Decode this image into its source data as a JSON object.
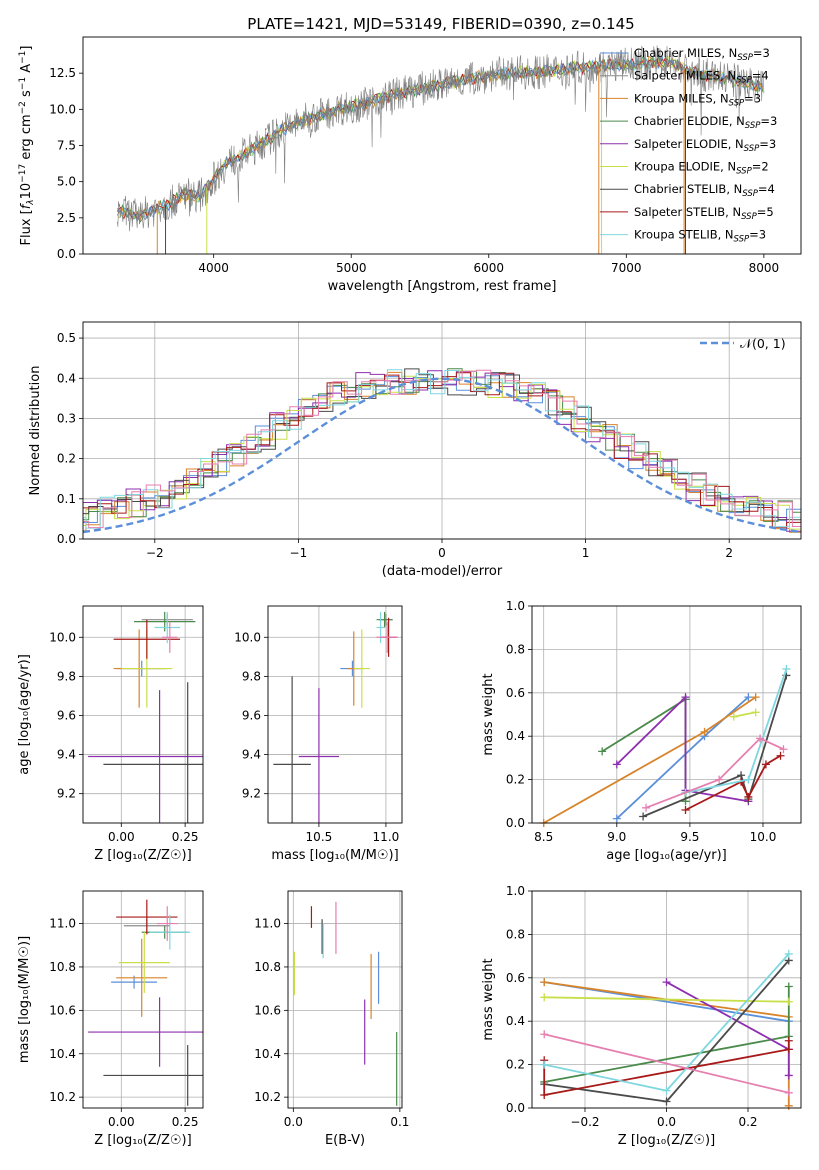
{
  "figure_title": "PLATE=1421, MJD=53149, FIBERID=0390, z=0.145",
  "colors": {
    "Chabrier MILES": "#5b8fd9",
    "Salpeter MILES": "#8c8c8c",
    "Kroupa MILES": "#d8842a",
    "Chabrier ELODIE": "#4a8a4a",
    "Salpeter ELODIE": "#8e2fae",
    "Kroupa ELODIE": "#c9df4a",
    "Chabrier STELIB": "#4a4a4a",
    "Salpeter STELIB": "#a81919",
    "Kroupa STELIB": "#7fd7e0",
    "pink": "#e67fb0",
    "normal": "#5b8fd9"
  },
  "chart_data": [
    {
      "id": "spectrum",
      "type": "line",
      "xlabel": "wavelength [Angstrom, rest frame]",
      "ylabel": "Flux [f_λ 10^-17 erg cm^-2 s^-1 A^-1]",
      "xlim": [
        3050,
        8270
      ],
      "ylim": [
        0,
        15
      ],
      "xticks": [
        "4000",
        "5000",
        "6000",
        "7000",
        "8000"
      ],
      "yticks": [
        "0.0",
        "2.5",
        "5.0",
        "7.5",
        "10.0",
        "12.5"
      ],
      "legend_position": "top-right",
      "legend": [
        {
          "label": "Chabrier MILES, N",
          "sub": "SSP",
          "tail": "=3"
        },
        {
          "label": "Salpeter MILES, N",
          "sub": "SSP",
          "tail": "=4"
        },
        {
          "label": "Kroupa MILES, N",
          "sub": "SSP",
          "tail": "=3"
        },
        {
          "label": "Chabrier ELODIE, N",
          "sub": "SSP",
          "tail": "=3"
        },
        {
          "label": "Salpeter ELODIE, N",
          "sub": "SSP",
          "tail": "=3"
        },
        {
          "label": "Kroupa ELODIE, N",
          "sub": "SSP",
          "tail": "=2"
        },
        {
          "label": "Chabrier STELIB, N",
          "sub": "SSP",
          "tail": "=4"
        },
        {
          "label": "Salpeter STELIB, N",
          "sub": "SSP",
          "tail": "=5"
        },
        {
          "label": "Kroupa STELIB, N",
          "sub": "SSP",
          "tail": "=3"
        }
      ],
      "continuum": [
        [
          3300,
          3.0
        ],
        [
          3450,
          2.6
        ],
        [
          3600,
          3.2
        ],
        [
          3700,
          3.6
        ],
        [
          3800,
          4.2
        ],
        [
          3900,
          4.0
        ],
        [
          4000,
          5.2
        ],
        [
          4100,
          6.3
        ],
        [
          4300,
          7.3
        ],
        [
          4500,
          8.6
        ],
        [
          4700,
          9.4
        ],
        [
          4900,
          10.0
        ],
        [
          5100,
          10.4
        ],
        [
          5300,
          11.0
        ],
        [
          5500,
          11.4
        ],
        [
          5800,
          12.0
        ],
        [
          6100,
          12.5
        ],
        [
          6400,
          12.6
        ],
        [
          6700,
          12.9
        ],
        [
          7000,
          13.1
        ],
        [
          7300,
          13.3
        ],
        [
          7500,
          12.5
        ],
        [
          7800,
          12.0
        ],
        [
          8000,
          11.5
        ]
      ]
    },
    {
      "id": "residuals",
      "type": "bar",
      "xlabel": "(data-model)/error",
      "ylabel": "Normed distribution",
      "xlim": [
        -2.5,
        2.5
      ],
      "ylim": [
        0,
        0.54
      ],
      "xticks": [
        "−2",
        "−1",
        "0",
        "1",
        "2"
      ],
      "yticks": [
        "0.0",
        "0.1",
        "0.2",
        "0.3",
        "0.4",
        "0.5"
      ],
      "legend": "𝒩(0, 1)",
      "bin_width": 0.1,
      "profile": [
        0.03,
        0.035,
        0.04,
        0.045,
        0.05,
        0.06,
        0.07,
        0.08,
        0.09,
        0.1,
        0.11,
        0.13,
        0.15,
        0.17,
        0.19,
        0.21,
        0.23,
        0.25,
        0.28,
        0.3,
        0.33,
        0.35,
        0.36,
        0.37,
        0.38,
        0.385,
        0.39,
        0.39,
        0.39,
        0.39,
        0.39,
        0.39,
        0.39,
        0.385,
        0.38,
        0.37,
        0.36,
        0.34,
        0.32,
        0.3,
        0.27,
        0.25,
        0.23,
        0.21,
        0.19,
        0.17,
        0.15,
        0.13,
        0.11,
        0.1,
        0.09,
        0.08,
        0.07,
        0.06,
        0.05,
        0.045,
        0.04,
        0.035,
        0.03,
        0.03
      ],
      "gaussian": "N(0,1) probability density"
    },
    {
      "id": "age_vs_Z",
      "type": "scatter",
      "xlabel": "Z [log₁₀(Z/Z☉)]",
      "ylabel": "age  [log₁₀(age/yr)]",
      "xlim": [
        -0.15,
        0.32
      ],
      "ylim": [
        9.05,
        10.16
      ],
      "xticks": [
        "0.00",
        "0.25"
      ],
      "yticks": [
        "9.2",
        "9.4",
        "9.6",
        "9.8",
        "10.0"
      ],
      "points": [
        {
          "c": "Chabrier MILES",
          "x": 0.08,
          "y": 9.84,
          "ex": 0.1,
          "ey": 0.04
        },
        {
          "c": "Salpeter MILES",
          "x": 0.18,
          "y": 10.09,
          "ex": 0.1,
          "ey": 0.03
        },
        {
          "c": "Kroupa MILES",
          "x": 0.07,
          "y": 9.84,
          "ex": 0.1,
          "ey": 0.2
        },
        {
          "c": "Chabrier ELODIE",
          "x": 0.17,
          "y": 10.08,
          "ex": 0.12,
          "ey": 0.05
        },
        {
          "c": "Salpeter ELODIE",
          "x": 0.15,
          "y": 9.39,
          "ex": 0.28,
          "ey": 0.34
        },
        {
          "c": "Kroupa ELODIE",
          "x": 0.1,
          "y": 9.84,
          "ex": 0.1,
          "ey": 0.2
        },
        {
          "c": "Chabrier STELIB",
          "x": 0.26,
          "y": 9.35,
          "ex": 0.33,
          "ey": 0.42
        },
        {
          "c": "Salpeter STELIB",
          "x": 0.1,
          "y": 9.99,
          "ex": 0.13,
          "ey": 0.1
        },
        {
          "c": "Kroupa STELIB",
          "x": 0.18,
          "y": 10.05,
          "ex": 0.05,
          "ey": 0.08
        },
        {
          "c": "pink",
          "x": 0.19,
          "y": 10.0,
          "ex": 0.03,
          "ey": 0.08
        }
      ]
    },
    {
      "id": "age_vs_mass",
      "type": "scatter",
      "xlabel": "mass [log₁₀(M/M☉)]",
      "ylabel": "",
      "xlim": [
        10.12,
        11.12
      ],
      "ylim": [
        9.05,
        10.16
      ],
      "xticks": [
        "10.5",
        "11.0"
      ],
      "yticks": [
        "9.2",
        "9.4",
        "9.6",
        "9.8",
        "10.0"
      ],
      "points": [
        {
          "c": "Chabrier MILES",
          "x": 10.75,
          "y": 9.84,
          "ex": 0.09,
          "ey": 0.04
        },
        {
          "c": "Salpeter MILES",
          "x": 11.0,
          "y": 10.09,
          "ex": 0.05,
          "ey": 0.03
        },
        {
          "c": "Kroupa MILES",
          "x": 10.76,
          "y": 9.84,
          "ex": 0.05,
          "ey": 0.19
        },
        {
          "c": "Chabrier ELODIE",
          "x": 10.99,
          "y": 10.09,
          "ex": 0.06,
          "ey": 0.04
        },
        {
          "c": "Salpeter ELODIE",
          "x": 10.5,
          "y": 9.39,
          "ex": 0.15,
          "ey": 0.35
        },
        {
          "c": "Kroupa ELODIE",
          "x": 10.82,
          "y": 9.84,
          "ex": 0.06,
          "ey": 0.2
        },
        {
          "c": "Chabrier STELIB",
          "x": 10.3,
          "y": 9.35,
          "ex": 0.14,
          "ey": 0.45
        },
        {
          "c": "Salpeter STELIB",
          "x": 11.02,
          "y": 10.0,
          "ex": 0.06,
          "ey": 0.1
        },
        {
          "c": "Kroupa STELIB",
          "x": 10.96,
          "y": 10.05,
          "ex": 0.03,
          "ey": 0.08
        },
        {
          "c": "pink",
          "x": 11.01,
          "y": 10.0,
          "ex": 0.08,
          "ey": 0.08
        }
      ]
    },
    {
      "id": "weight_vs_age",
      "type": "line",
      "xlabel": "age  [log₁₀(age/yr)]",
      "ylabel": "mass weight",
      "xlim": [
        8.42,
        10.26
      ],
      "ylim": [
        0,
        1.0
      ],
      "xticks": [
        "8.5",
        "9.0",
        "9.5",
        "10.0"
      ],
      "yticks": [
        "0.0",
        "0.2",
        "0.4",
        "0.6",
        "0.8",
        "1.0"
      ],
      "series": [
        {
          "c": "Chabrier MILES",
          "x": [
            9.0,
            9.6,
            9.9
          ],
          "y": [
            0.02,
            0.4,
            0.58
          ]
        },
        {
          "c": "Kroupa MILES",
          "x": [
            8.5,
            9.6,
            9.95
          ],
          "y": [
            0.0,
            0.42,
            0.58
          ]
        },
        {
          "c": "Chabrier ELODIE",
          "x": [
            8.9,
            9.47,
            9.47
          ],
          "y": [
            0.33,
            0.57,
            0.1
          ]
        },
        {
          "c": "Salpeter ELODIE",
          "x": [
            9.0,
            9.47,
            9.47,
            9.9
          ],
          "y": [
            0.27,
            0.58,
            0.15,
            0.1
          ]
        },
        {
          "c": "Kroupa ELODIE",
          "x": [
            9.8,
            9.95
          ],
          "y": [
            0.49,
            0.51
          ]
        },
        {
          "c": "Chabrier STELIB",
          "x": [
            9.18,
            9.85,
            9.9,
            10.16
          ],
          "y": [
            0.03,
            0.22,
            0.11,
            0.68
          ]
        },
        {
          "c": "Salpeter STELIB",
          "x": [
            9.47,
            9.85,
            9.9,
            10.02,
            10.12
          ],
          "y": [
            0.06,
            0.19,
            0.12,
            0.27,
            0.31
          ]
        },
        {
          "c": "Kroupa STELIB",
          "x": [
            9.47,
            9.9,
            10.16
          ],
          "y": [
            0.14,
            0.2,
            0.71
          ]
        },
        {
          "c": "pink",
          "x": [
            9.2,
            9.7,
            9.98,
            10.14
          ],
          "y": [
            0.07,
            0.2,
            0.39,
            0.34
          ]
        }
      ]
    },
    {
      "id": "mass_vs_Z",
      "type": "scatter",
      "xlabel": "Z [log₁₀(Z/Z☉)]",
      "ylabel": "mass [log₁₀(M/M☉)]",
      "xlim": [
        -0.15,
        0.32
      ],
      "ylim": [
        10.15,
        11.15
      ],
      "xticks": [
        "0.00",
        "0.25"
      ],
      "yticks": [
        "10.2",
        "10.4",
        "10.6",
        "10.8",
        "11.0"
      ],
      "points": [
        {
          "c": "Chabrier MILES",
          "x": 0.05,
          "y": 10.73,
          "ex": 0.09,
          "ey": 0.03
        },
        {
          "c": "Salpeter MILES",
          "x": 0.1,
          "y": 10.99,
          "ex": 0.09,
          "ey": 0.03
        },
        {
          "c": "Kroupa MILES",
          "x": 0.08,
          "y": 10.75,
          "ex": 0.1,
          "ey": 0.18
        },
        {
          "c": "Chabrier ELODIE",
          "x": 0.17,
          "y": 10.96,
          "ex": 0.09,
          "ey": 0.03
        },
        {
          "c": "Salpeter ELODIE",
          "x": 0.15,
          "y": 10.5,
          "ex": 0.28,
          "ey": 0.16
        },
        {
          "c": "Kroupa ELODIE",
          "x": 0.09,
          "y": 10.82,
          "ex": 0.1,
          "ey": 0.14
        },
        {
          "c": "Chabrier STELIB",
          "x": 0.26,
          "y": 10.3,
          "ex": 0.33,
          "ey": 0.14
        },
        {
          "c": "Salpeter STELIB",
          "x": 0.1,
          "y": 11.03,
          "ex": 0.12,
          "ey": 0.08
        },
        {
          "c": "Kroupa STELIB",
          "x": 0.19,
          "y": 10.96,
          "ex": 0.08,
          "ey": 0.08
        },
        {
          "c": "pink",
          "x": 0.18,
          "y": 11.0,
          "ex": 0.04,
          "ey": 0.08
        }
      ]
    },
    {
      "id": "mass_vs_ebv",
      "type": "scatter",
      "xlabel": "E(B-V)",
      "ylabel": "",
      "xlim": [
        -0.005,
        0.102
      ],
      "ylim": [
        10.15,
        11.15
      ],
      "xticks": [
        "0.0",
        "0.1"
      ],
      "yticks": [
        "10.2",
        "10.4",
        "10.6",
        "10.8",
        "11.0"
      ],
      "points": [
        {
          "c": "Chabrier MILES",
          "x": 0.08,
          "y": 10.75,
          "ex": 0,
          "ey": 0.12
        },
        {
          "c": "Kroupa MILES",
          "x": 0.073,
          "y": 10.71,
          "ex": 0,
          "ey": 0.15
        },
        {
          "c": "Chabrier ELODIE",
          "x": 0.097,
          "y": 10.33,
          "ex": 0,
          "ey": 0.17
        },
        {
          "c": "Salpeter ELODIE",
          "x": 0.067,
          "y": 10.5,
          "ex": 0,
          "ey": 0.15
        },
        {
          "c": "Kroupa ELODIE",
          "x": 0.001,
          "y": 10.77,
          "ex": 0,
          "ey": 0.1
        },
        {
          "c": "Chabrier STELIB",
          "x": 0.027,
          "y": 10.94,
          "ex": 0,
          "ey": 0.08
        },
        {
          "c": "Salpeter STELIB",
          "x": 0.017,
          "y": 11.03,
          "ex": 0,
          "ey": 0.05
        },
        {
          "c": "Kroupa STELIB",
          "x": 0.028,
          "y": 10.92,
          "ex": 0,
          "ey": 0.08
        },
        {
          "c": "pink",
          "x": 0.04,
          "y": 10.98,
          "ex": 0,
          "ey": 0.12
        }
      ]
    },
    {
      "id": "weight_vs_Z",
      "type": "line",
      "xlabel": "Z [log₁₀(Z/Z☉)]",
      "ylabel": "mass weight",
      "xlim": [
        -0.33,
        0.33
      ],
      "ylim": [
        0,
        1.0
      ],
      "xticks": [
        "−0.2",
        "0.0",
        "0.2"
      ],
      "yticks": [
        "0.0",
        "0.2",
        "0.4",
        "0.6",
        "0.8",
        "1.0"
      ],
      "series": [
        {
          "c": "Chabrier MILES",
          "x": [
            -0.3,
            0.3
          ],
          "y": [
            0.58,
            0.4
          ]
        },
        {
          "c": "Kroupa MILES",
          "x": [
            -0.3,
            0.3,
            0.3
          ],
          "y": [
            0.58,
            0.42,
            0.01
          ]
        },
        {
          "c": "Chabrier ELODIE",
          "x": [
            -0.3,
            0.3,
            0.3
          ],
          "y": [
            0.12,
            0.33,
            0.56
          ]
        },
        {
          "c": "Salpeter ELODIE",
          "x": [
            0.0,
            0.3,
            0.3
          ],
          "y": [
            0.58,
            0.27,
            0.15
          ]
        },
        {
          "c": "Kroupa ELODIE",
          "x": [
            -0.3,
            0.3
          ],
          "y": [
            0.51,
            0.49
          ]
        },
        {
          "c": "Chabrier STELIB",
          "x": [
            -0.3,
            0.0,
            0.3
          ],
          "y": [
            0.11,
            0.03,
            0.68
          ]
        },
        {
          "c": "Salpeter STELIB",
          "x": [
            -0.3,
            -0.3,
            0.3,
            0.3
          ],
          "y": [
            0.22,
            0.06,
            0.27,
            0.31
          ]
        },
        {
          "c": "Kroupa STELIB",
          "x": [
            -0.3,
            0.0,
            0.3
          ],
          "y": [
            0.2,
            0.08,
            0.71
          ]
        },
        {
          "c": "pink",
          "x": [
            -0.3,
            0.3
          ],
          "y": [
            0.34,
            0.07
          ]
        }
      ]
    }
  ]
}
